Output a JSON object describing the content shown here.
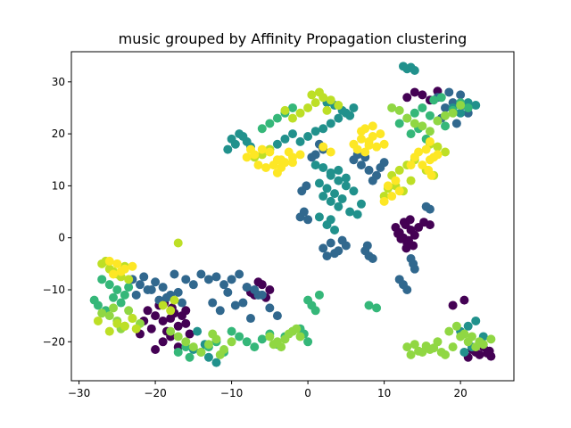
{
  "chart_data": {
    "type": "scatter",
    "title": "music grouped by Affinity Propagation clustering",
    "xlabel": "",
    "ylabel": "",
    "xlim": [
      -31,
      27
    ],
    "ylim": [
      -27.5,
      35.8
    ],
    "x_ticks": [
      -30,
      -20,
      -10,
      0,
      10,
      20
    ],
    "y_ticks": [
      -20,
      -10,
      0,
      10,
      20,
      30
    ],
    "x_tick_labels": [
      "−30",
      "−20",
      "−10",
      "0",
      "10",
      "20"
    ],
    "y_tick_labels": [
      "−20",
      "−10",
      "0",
      "10",
      "20",
      "30"
    ],
    "grid": false,
    "legend": "none",
    "colormap": "viridis",
    "cluster_colors": [
      "#440154",
      "#31688e",
      "#21918c",
      "#35b779",
      "#90d743",
      "#bddf26",
      "#fde725"
    ],
    "clusters": [
      {
        "cluster": 0,
        "color": "#440154",
        "x": [
          11.5,
          12.0,
          12.5,
          13.0,
          13.5,
          14.0,
          12.8,
          13.2,
          12.2,
          13.8,
          11.8,
          12.6,
          13.4,
          12.9,
          14.5,
          15.2,
          16.0,
          -21.0,
          -20.0,
          -19.0,
          -18.0,
          -17.0,
          -16.0,
          -20.5,
          -18.5,
          -17.5,
          -19.5,
          -16.5,
          -21.5,
          -18.0,
          -15.5,
          -19.0,
          -17.0,
          -20.0,
          -22.0,
          -16.0,
          -18.8,
          -17.8,
          13.0,
          14.0,
          15.0,
          16.0,
          17.0,
          21.5,
          22.0,
          22.5,
          23.0,
          23.5,
          24.0,
          21.0,
          22.8,
          23.8,
          20.5,
          -6.0,
          -5.0,
          -7.0,
          -8.0,
          -6.5,
          -5.5,
          -7.5,
          19.0
        ],
        "y": [
          2.0,
          1.0,
          0.0,
          -1.0,
          1.5,
          0.5,
          2.5,
          -0.5,
          -0.2,
          -1.5,
          0.8,
          3.0,
          3.5,
          -2.0,
          2.0,
          3.0,
          2.5,
          -14.0,
          -15.0,
          -16.0,
          -15.5,
          -17.0,
          -16.5,
          -17.5,
          -18.0,
          -14.5,
          -13.0,
          -15.0,
          -16.0,
          -19.0,
          -18.5,
          -20.0,
          -21.0,
          -21.5,
          -18.5,
          -14.0,
          -12.5,
          -13.5,
          27.0,
          28.0,
          27.5,
          26.5,
          28.2,
          -21.5,
          -22.0,
          -22.5,
          -21.0,
          -22.2,
          -22.8,
          -23.0,
          -20.5,
          -21.8,
          -12.0,
          -9.0,
          -10.0,
          -11.0,
          -9.5,
          -8.5,
          -11.5,
          -10.5,
          -13.0
        ]
      },
      {
        "cluster": 1,
        "color": "#31688e",
        "x": [
          -23.0,
          -22.0,
          -21.0,
          -20.0,
          -19.0,
          -18.0,
          -17.0,
          -16.0,
          -15.0,
          -22.5,
          -21.5,
          -20.5,
          -19.5,
          -18.5,
          -17.5,
          -16.5,
          -14.0,
          -13.0,
          -12.0,
          -11.0,
          -10.0,
          -9.0,
          -8.0,
          -7.0,
          -6.0,
          -5.0,
          -4.0,
          -12.5,
          -10.5,
          -8.5,
          -6.5,
          -11.5,
          -9.5,
          -7.5,
          2.0,
          3.0,
          4.0,
          5.0,
          3.5,
          2.5,
          4.5,
          -1.0,
          -0.5,
          0.0,
          -0.8,
          -0.2,
          6.0,
          7.0,
          8.0,
          9.0,
          10.0,
          6.5,
          7.5,
          8.5,
          9.5,
          12.0,
          13.0,
          14.0,
          13.5,
          12.5,
          13.8,
          17.0,
          18.0,
          19.0,
          20.0,
          21.0,
          17.5,
          18.5,
          19.5,
          20.5,
          7.5,
          8.0,
          8.5,
          7.8,
          1.0,
          2.0,
          1.5,
          0.5,
          16.0,
          15.5
        ],
        "y": [
          -8.0,
          -9.0,
          -10.0,
          -8.5,
          -9.5,
          -11.0,
          -10.5,
          -8.0,
          -9.0,
          -11.0,
          -7.5,
          -10.0,
          -12.0,
          -11.5,
          -7.0,
          -12.5,
          -7.0,
          -8.0,
          -7.5,
          -9.0,
          -8.0,
          -7.0,
          -9.5,
          -10.0,
          -11.0,
          -13.5,
          -15.0,
          -12.5,
          -10.5,
          -12.5,
          -11.0,
          -14.0,
          -13.0,
          -15.5,
          -2.0,
          -1.0,
          -2.5,
          -1.5,
          -3.0,
          -3.5,
          -0.5,
          4.0,
          5.0,
          3.5,
          9.0,
          10.0,
          15.0,
          14.0,
          13.0,
          12.0,
          14.5,
          16.0,
          15.5,
          11.0,
          13.5,
          -8.0,
          -10.0,
          -6.0,
          -4.0,
          -9.0,
          -5.0,
          27.0,
          25.0,
          26.0,
          27.5,
          24.0,
          23.0,
          28.0,
          22.0,
          25.5,
          -2.5,
          -3.5,
          -4.0,
          -1.5,
          16.0,
          17.0,
          18.0,
          15.5,
          5.5,
          6.0
        ]
      },
      {
        "cluster": 2,
        "color": "#21918c",
        "x": [
          -10.0,
          -9.0,
          -8.0,
          -10.5,
          -9.5,
          -8.5,
          -7.5,
          -5.0,
          -4.0,
          -3.0,
          -2.0,
          -1.0,
          0.0,
          1.0,
          2.0,
          3.0,
          4.0,
          5.0,
          6.0,
          2.5,
          3.5,
          4.5,
          5.5,
          3.0,
          4.0,
          5.0,
          6.0,
          2.0,
          3.0,
          4.0,
          5.5,
          6.5,
          7.0,
          1.5,
          2.5,
          3.5,
          4.5,
          5.0,
          3.0,
          4.0,
          1.0,
          2.0,
          3.0,
          2.5,
          1.5,
          3.5,
          22.0,
          21.0,
          20.0,
          23.0,
          22.5,
          21.5,
          20.5,
          12.5,
          13.0,
          13.5,
          14.0,
          19.0,
          20.0,
          21.0,
          22.0,
          -14.0,
          -13.0,
          -12.0,
          -15.0,
          -13.5,
          -14.5
        ],
        "y": [
          19.0,
          20.0,
          18.5,
          17.0,
          18.0,
          19.5,
          17.5,
          17.0,
          18.0,
          19.0,
          20.0,
          18.5,
          19.5,
          20.5,
          21.0,
          22.0,
          23.0,
          24.0,
          25.0,
          26.0,
          25.5,
          24.5,
          23.5,
          12.0,
          11.0,
          10.0,
          9.0,
          8.0,
          7.0,
          6.0,
          5.0,
          4.5,
          6.5,
          10.5,
          9.5,
          8.5,
          7.5,
          11.5,
          12.5,
          13.0,
          14.0,
          13.5,
          3.5,
          2.5,
          4.0,
          1.5,
          -16.0,
          -17.0,
          -18.0,
          -19.0,
          -20.0,
          -21.0,
          -22.0,
          33.0,
          32.5,
          32.8,
          32.2,
          25.0,
          24.0,
          26.0,
          25.5,
          -22.0,
          -23.0,
          -24.0,
          -21.5,
          -20.5,
          -18.0
        ]
      },
      {
        "cluster": 3,
        "color": "#35b779",
        "x": [
          -10.0,
          -9.0,
          -8.0,
          -7.0,
          -11.0,
          -12.0,
          -13.0,
          -6.0,
          -5.0,
          -4.0,
          -3.0,
          -2.0,
          -1.0,
          -0.5,
          0.0,
          -27.0,
          -26.0,
          -25.0,
          -24.0,
          -28.0,
          -27.5,
          -26.5,
          -25.5,
          -24.5,
          -23.5,
          12.0,
          13.0,
          14.0,
          15.0,
          16.0,
          17.0,
          18.0,
          19.0,
          20.0,
          21.0,
          13.5,
          14.5,
          15.5,
          16.5,
          17.5,
          -6.0,
          -5.0,
          -4.0,
          -3.0,
          -2.0,
          8.0,
          9.0,
          -16.0,
          -17.0,
          -15.5,
          0.0,
          0.5,
          1.0,
          1.5
        ],
        "y": [
          -18.0,
          -19.0,
          -20.0,
          -21.0,
          -22.0,
          -20.0,
          -21.0,
          -19.5,
          -18.5,
          -20.5,
          -19.0,
          -18.0,
          -17.5,
          -18.5,
          -20.0,
          -8.0,
          -9.0,
          -10.0,
          -11.0,
          -12.0,
          -13.0,
          -14.0,
          -11.5,
          -12.5,
          -9.5,
          22.0,
          23.0,
          24.0,
          25.0,
          23.5,
          22.5,
          21.5,
          24.5,
          26.0,
          25.0,
          20.0,
          21.0,
          19.0,
          26.5,
          27.0,
          21.0,
          22.0,
          23.0,
          24.0,
          25.0,
          -13.0,
          -13.5,
          -21.0,
          -22.0,
          -23.0,
          -12.0,
          -13.0,
          -14.0,
          -11.0
        ]
      },
      {
        "cluster": 4,
        "color": "#90d743",
        "x": [
          13.0,
          14.0,
          15.0,
          16.0,
          17.0,
          18.0,
          19.0,
          20.0,
          21.0,
          22.0,
          23.0,
          24.0,
          13.5,
          14.5,
          15.5,
          16.5,
          17.5,
          18.5,
          19.5,
          20.5,
          21.5,
          22.5,
          -5.0,
          -4.0,
          -3.0,
          -2.0,
          -1.0,
          -4.5,
          -3.5,
          -2.5,
          -1.5,
          -26.0,
          -25.0,
          -24.0,
          -23.0,
          -22.0,
          -27.0,
          -25.5,
          -24.5,
          -23.5,
          -18.0,
          -17.0,
          -16.0,
          -15.0,
          -14.0,
          -13.0,
          -12.0,
          -11.0,
          -10.0,
          -12.5,
          -11.5,
          11.0,
          12.0,
          13.0,
          14.0,
          15.0,
          16.0,
          17.0,
          18.0,
          19.0,
          20.0
        ],
        "y": [
          -21.0,
          -20.5,
          -22.0,
          -21.5,
          -20.0,
          -22.5,
          -21.0,
          -19.0,
          -20.0,
          -21.0,
          -20.5,
          -19.5,
          -22.5,
          -21.8,
          -20.8,
          -21.2,
          -22.0,
          -18.0,
          -17.0,
          -18.5,
          -19.0,
          -20.0,
          -19.0,
          -20.0,
          -19.5,
          -18.0,
          -19.0,
          -20.5,
          -21.0,
          -18.5,
          -17.5,
          -15.0,
          -16.0,
          -17.0,
          -15.5,
          -16.5,
          -14.5,
          -13.5,
          -17.5,
          -14.0,
          -18.0,
          -19.0,
          -20.0,
          -21.0,
          -22.0,
          -20.5,
          -19.5,
          -21.5,
          -20.0,
          -18.5,
          -22.5,
          25.0,
          24.5,
          23.0,
          22.0,
          21.5,
          20.5,
          22.5,
          23.5,
          24.0,
          25.5
        ]
      },
      {
        "cluster": 5,
        "color": "#bddf26",
        "x": [
          -27.0,
          -26.0,
          -25.0,
          -24.0,
          -26.5,
          -25.5,
          -24.5,
          -23.5,
          -27.5,
          -24.0,
          -25.0,
          -26.0,
          -23.0,
          -22.5,
          -17.0,
          0.0,
          1.0,
          2.0,
          3.0,
          4.0,
          -1.0,
          -2.0,
          -3.0,
          0.5,
          1.5,
          2.5,
          11.0,
          12.0,
          13.0,
          14.0,
          11.5,
          12.5,
          13.5,
          10.0,
          10.5,
          -7.0,
          -6.0,
          -5.0,
          16.0,
          17.0,
          18.0,
          -19.0,
          -18.0,
          -17.5,
          15.5,
          16.5
        ],
        "y": [
          -5.0,
          -6.0,
          -7.0,
          -5.5,
          -4.5,
          -6.5,
          -7.5,
          -8.0,
          -16.0,
          -17.0,
          -16.5,
          -18.0,
          -15.5,
          -17.5,
          -1.0,
          25.0,
          26.0,
          27.0,
          26.5,
          25.5,
          24.0,
          23.0,
          24.5,
          27.5,
          28.0,
          24.5,
          12.0,
          13.0,
          14.0,
          15.0,
          10.0,
          9.0,
          11.0,
          8.0,
          9.5,
          15.5,
          16.0,
          17.0,
          18.0,
          17.5,
          16.5,
          -13.0,
          -14.0,
          -12.0,
          13.0,
          12.0
        ]
      },
      {
        "cluster": 6,
        "color": "#fde725",
        "x": [
          -8.0,
          -7.0,
          -6.0,
          -5.0,
          -4.0,
          -3.0,
          -2.0,
          -1.0,
          -5.5,
          -4.5,
          -3.5,
          -2.5,
          -6.5,
          -7.5,
          6.0,
          7.0,
          8.0,
          9.0,
          10.0,
          6.5,
          7.5,
          8.5,
          9.5,
          7.0,
          8.0,
          15.0,
          16.0,
          17.0,
          15.5,
          16.5,
          14.5,
          15.8,
          16.2,
          10.0,
          11.0,
          12.0,
          10.5,
          11.5,
          -26.0,
          -25.0,
          -24.0,
          -23.0,
          -25.5,
          -24.5,
          -3.5,
          -4.0,
          -2.0,
          2.0,
          3.0,
          7.5,
          8.5,
          16.0,
          13.5,
          14.0
        ],
        "y": [
          15.5,
          16.0,
          17.0,
          16.5,
          15.0,
          14.5,
          15.5,
          16.0,
          13.5,
          14.0,
          15.0,
          16.5,
          14.0,
          17.0,
          18.0,
          19.0,
          18.5,
          17.5,
          18.0,
          17.0,
          16.5,
          19.5,
          20.0,
          20.5,
          17.8,
          14.0,
          15.0,
          16.0,
          17.0,
          15.5,
          16.5,
          13.0,
          12.0,
          7.0,
          8.0,
          9.0,
          10.0,
          11.0,
          -4.5,
          -5.0,
          -6.0,
          -5.5,
          -7.0,
          -6.5,
          13.5,
          12.5,
          14.5,
          17.5,
          16.5,
          21.0,
          21.5,
          18.5,
          14.0,
          15.5
        ]
      }
    ]
  }
}
